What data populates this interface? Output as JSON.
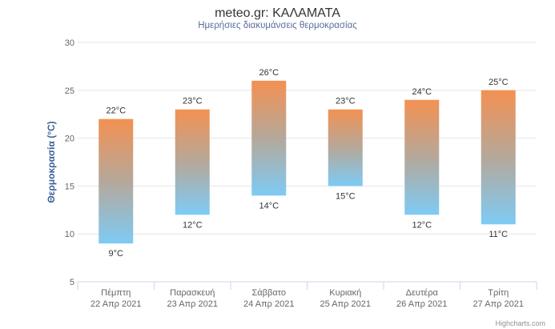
{
  "title": "meteo.gr: ΚΑΛΑΜΑΤΑ",
  "subtitle": "Ημερήσιες διακυμάνσεις θερμοκρασίας",
  "credits": "Highcharts.com",
  "chart_data": {
    "type": "bar",
    "subtype": "columnrange",
    "title": "meteo.gr: ΚΑΛΑΜΑΤΑ",
    "subtitle": "Ημερήσιες διακυμάνσεις θερμοκρασίας",
    "xlabel": "",
    "ylabel": "Θερμοκρασία (°C)",
    "ylim": [
      5,
      30
    ],
    "yticks": [
      5,
      10,
      15,
      20,
      25,
      30
    ],
    "grid": true,
    "categories": [
      {
        "day": "Πέμπτη",
        "date": "22 Απρ 2021"
      },
      {
        "day": "Παρασκευή",
        "date": "23 Απρ 2021"
      },
      {
        "day": "Σάββατο",
        "date": "24 Απρ 2021"
      },
      {
        "day": "Κυριακή",
        "date": "25 Απρ 2021"
      },
      {
        "day": "Δευτέρα",
        "date": "26 Απρ 2021"
      },
      {
        "day": "Τρίτη",
        "date": "27 Απρ 2021"
      }
    ],
    "low": [
      9,
      12,
      14,
      15,
      12,
      11
    ],
    "high": [
      22,
      23,
      26,
      23,
      24,
      25
    ],
    "unit": "°C",
    "colors": {
      "top": "#f39152",
      "mid": "#b5a89a",
      "bottom": "#7ecbf5"
    }
  }
}
